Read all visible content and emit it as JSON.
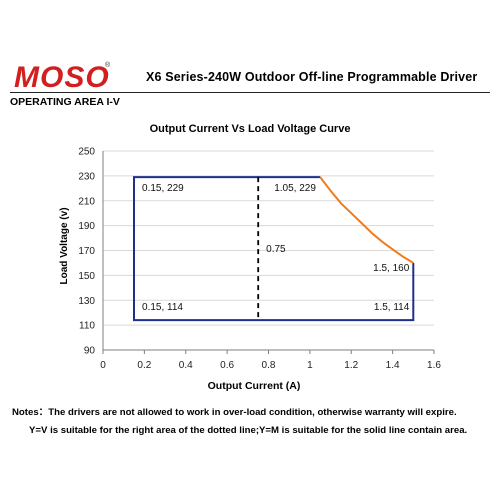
{
  "header": {
    "brand": "MOSO",
    "brand_mark": "®",
    "title": "X6  Series-240W  Outdoor  Off-line  Programmable  Driver",
    "section": "OPERATING AREA I-V"
  },
  "colors": {
    "brand_red": "#d21f1f",
    "box_line": "#1f2f8a",
    "curve": "#f07b1a",
    "grid": "#d9d9d9",
    "axis": "#7f7f7f"
  },
  "chart_data": {
    "type": "line",
    "title": "Output Current Vs Load Voltage Curve",
    "xlabel": "Output Current (A)",
    "ylabel": "Load Voltage (v)",
    "xlim": [
      0,
      1.6
    ],
    "ylim": [
      90,
      250
    ],
    "xticks": [
      "0",
      "0.2",
      "0.4",
      "0.6",
      "0.8",
      "1",
      "1.2",
      "1.4",
      "1.6"
    ],
    "yticks": [
      "90",
      "110",
      "130",
      "150",
      "170",
      "190",
      "210",
      "230",
      "250"
    ],
    "grid": "horizontal",
    "series": [
      {
        "kind": "boundary",
        "color": "#1f2f8a",
        "points": [
          [
            1.05,
            229
          ],
          [
            0.15,
            229
          ],
          [
            0.15,
            114
          ],
          [
            1.5,
            114
          ],
          [
            1.5,
            160
          ]
        ]
      },
      {
        "kind": "power-limit-curve",
        "color": "#f07b1a",
        "points": [
          [
            1.05,
            229
          ],
          [
            1.1,
            218
          ],
          [
            1.15,
            208
          ],
          [
            1.2,
            200
          ],
          [
            1.25,
            192
          ],
          [
            1.3,
            184
          ],
          [
            1.35,
            177
          ],
          [
            1.4,
            171
          ],
          [
            1.45,
            165
          ],
          [
            1.5,
            160
          ]
        ]
      },
      {
        "kind": "divider",
        "style": "dashed",
        "color": "#000000",
        "points": [
          [
            0.75,
            229
          ],
          [
            0.75,
            114
          ]
        ]
      }
    ],
    "annotations": [
      {
        "text": "0.15, 229",
        "x": 0.15,
        "y": 229,
        "corner": "top-left"
      },
      {
        "text": "1.05, 229",
        "x": 1.05,
        "y": 229,
        "corner": "top-right"
      },
      {
        "text": "0.75",
        "x": 0.75,
        "y": 172,
        "corner": "mid"
      },
      {
        "text": "1.5, 160",
        "x": 1.5,
        "y": 160,
        "corner": "right"
      },
      {
        "text": "0.15, 114",
        "x": 0.15,
        "y": 114,
        "corner": "bottom-left"
      },
      {
        "text": "1.5, 114",
        "x": 1.5,
        "y": 114,
        "corner": "bottom-right"
      }
    ]
  },
  "notes": {
    "line1": "Notes：The drivers are not allowed to work in over-load condition, otherwise warranty will expire.",
    "line2": "Y=V is suitable for the right area of the dotted line;Y=M is suitable for the solid line contain area."
  }
}
